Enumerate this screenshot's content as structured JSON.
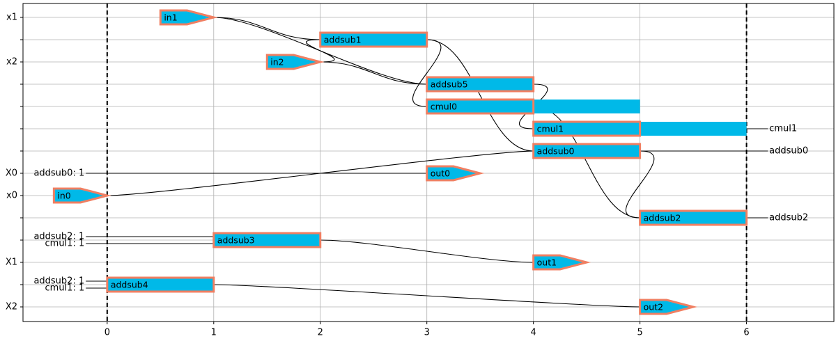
{
  "chart_data": {
    "type": "schedule",
    "xlim": [
      -0.79,
      6.82
    ],
    "xticks": [
      0,
      1,
      2,
      3,
      4,
      5,
      6
    ],
    "ylim": [
      -0.625,
      13.656
    ],
    "categories": [
      "x1",
      null,
      "x2",
      null,
      null,
      null,
      null,
      "X0",
      "x0",
      null,
      null,
      "X1",
      null,
      "X2"
    ],
    "grid": true,
    "markers": [
      0,
      6
    ],
    "color": "#00b9e8",
    "border_color": "#f07f62",
    "tasks": [
      {
        "label": "in1",
        "shape": "arrow",
        "row": 0,
        "start": 0.5,
        "end": 1
      },
      {
        "label": "addsub1",
        "shape": "box",
        "row": 1,
        "start": 2,
        "end": 3
      },
      {
        "label": "in2",
        "shape": "arrow",
        "row": 2,
        "start": 1.5,
        "end": 2
      },
      {
        "label": "addsub5",
        "shape": "box",
        "row": 3,
        "start": 3,
        "end": 4
      },
      {
        "label": "cmul0",
        "shape": "box",
        "row": 4,
        "start": 3,
        "end": 4,
        "hold_end": 5
      },
      {
        "label": "cmul1",
        "shape": "box",
        "row": 5,
        "start": 4,
        "end": 5,
        "hold_end": 6
      },
      {
        "label": "addsub0",
        "shape": "box",
        "row": 6,
        "start": 4,
        "end": 5
      },
      {
        "label": "out0",
        "shape": "arrow",
        "row": 7,
        "start": 3,
        "end": 3.5
      },
      {
        "label": "in0",
        "shape": "arrow",
        "row": 8,
        "start": -0.5,
        "end": 0
      },
      {
        "label": "addsub2",
        "shape": "box",
        "row": 9,
        "start": 5,
        "end": 6
      },
      {
        "label": "addsub3",
        "shape": "box",
        "row": 10,
        "start": 1,
        "end": 2
      },
      {
        "label": "out1",
        "shape": "arrow",
        "row": 11,
        "start": 4,
        "end": 4.5
      },
      {
        "label": "addsub4",
        "shape": "box",
        "row": 12,
        "start": 0,
        "end": 1
      },
      {
        "label": "out2",
        "shape": "arrow",
        "row": 13,
        "start": 5,
        "end": 5.5
      }
    ],
    "edges": [
      [
        0,
        1
      ],
      [
        0,
        3
      ],
      [
        2,
        1
      ],
      [
        2,
        3
      ],
      [
        1,
        4
      ],
      [
        1,
        6
      ],
      [
        3,
        5
      ],
      [
        4,
        9
      ],
      [
        6,
        9
      ],
      [
        8,
        6
      ],
      [
        10,
        11
      ],
      [
        12,
        13
      ]
    ],
    "inputs": [
      {
        "label": "addsub0: 1",
        "to": 7
      },
      {
        "label": "addsub2: 1",
        "to": 10
      },
      {
        "label": "cmul1: 1",
        "to": 10
      },
      {
        "label": "addsub2: 1",
        "to": 12
      },
      {
        "label": "cmul1: 1",
        "to": 12
      }
    ],
    "outputs": [
      {
        "label": "cmul1",
        "from": 5
      },
      {
        "label": "addsub0",
        "from": 6
      },
      {
        "label": "addsub2",
        "from": 9
      }
    ],
    "label_x": [
      -0.2,
      6.2
    ]
  }
}
